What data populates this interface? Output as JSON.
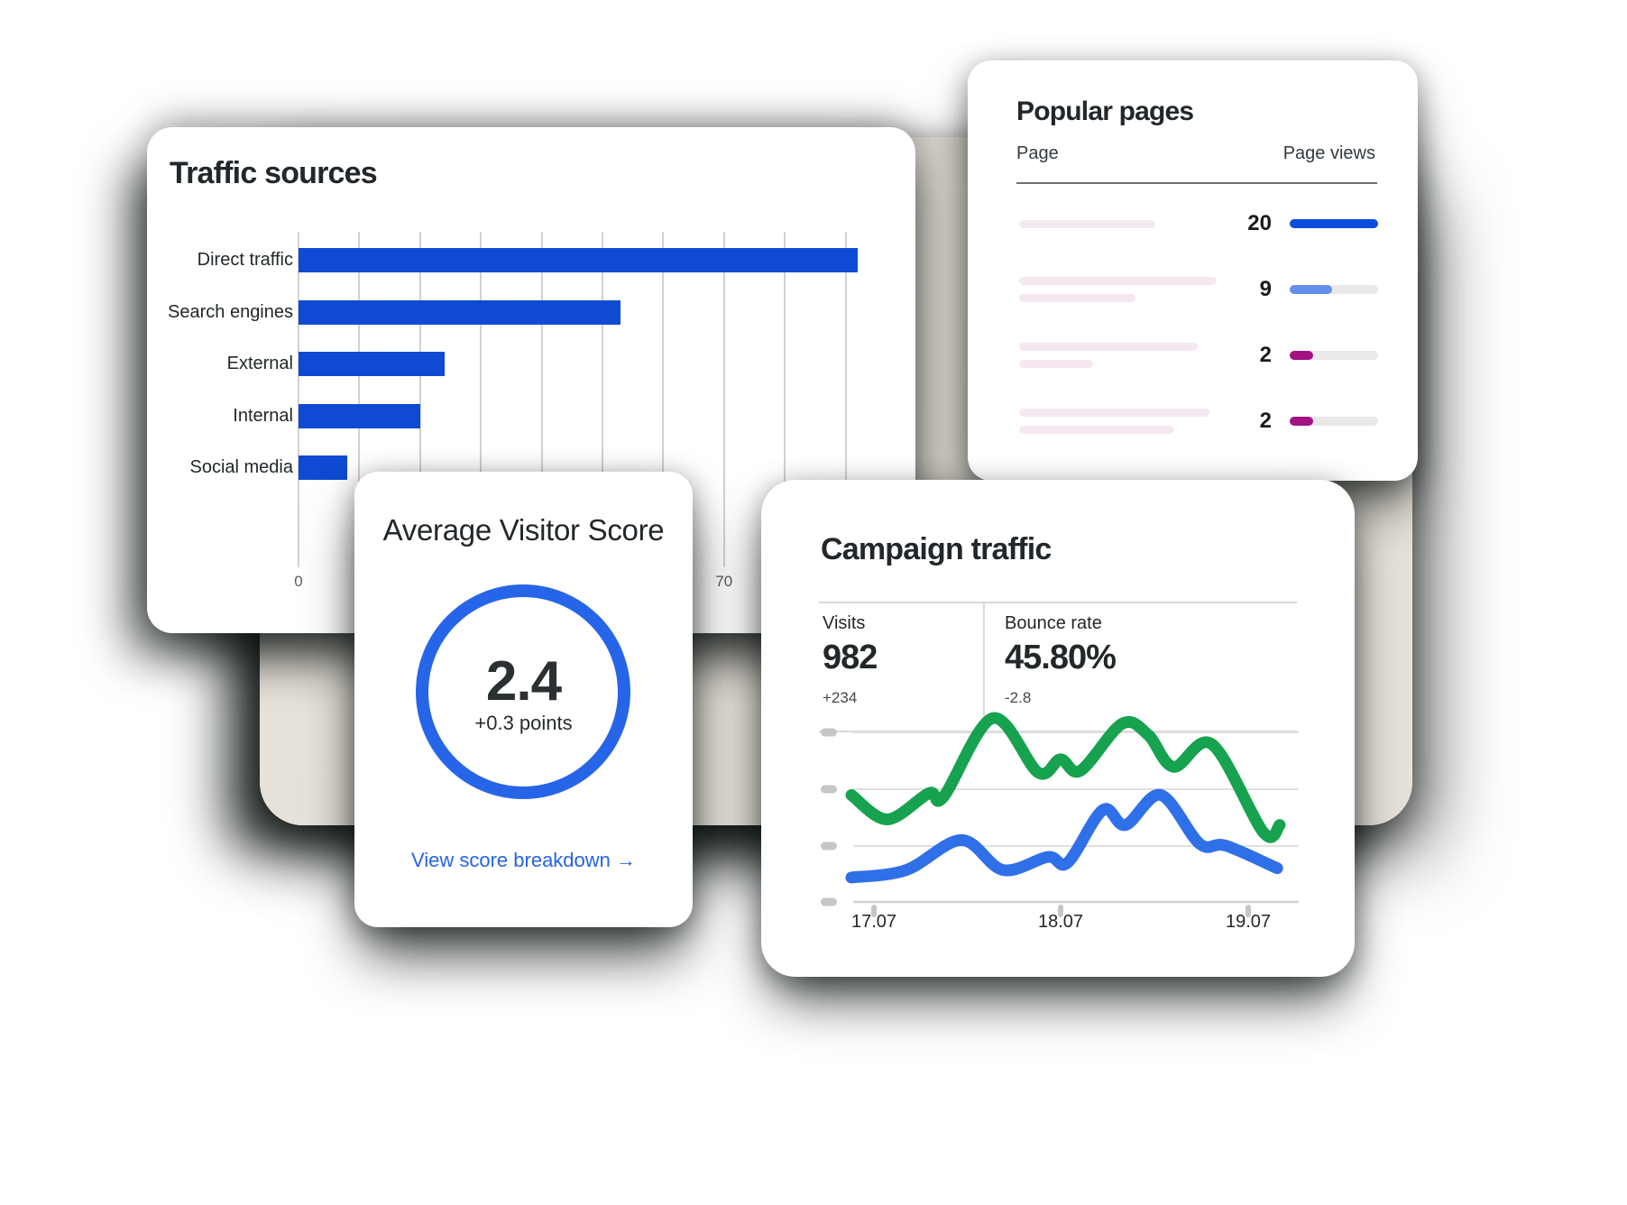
{
  "colors": {
    "bar_blue": "#0e4bd2",
    "ring_blue": "#2765e8",
    "link_blue": "#2563e8",
    "line_green": "#17a24f",
    "line_blue": "#2f6fe8",
    "mini_bar_full_blue": "#0d4cdb",
    "mini_bar_partial_blue": "#638ee9",
    "mini_bar_magenta": "#a31183",
    "mini_bar_track": "#e9e9e9",
    "placeholder_pink": "#f5e8f1",
    "panel_beige": "#e6e1d9"
  },
  "chart_data": [
    {
      "id": "traffic_sources",
      "type": "bar",
      "orientation": "horizontal",
      "title": "Traffic sources",
      "categories": [
        "Direct traffic",
        "Search engines",
        "External",
        "Internal",
        "Social media"
      ],
      "values": [
        92,
        53,
        24,
        20,
        8
      ],
      "xlim": [
        0,
        92
      ],
      "gridline_step": 10,
      "grid": "vertical",
      "x_tick_labels": [
        {
          "value": 0,
          "label": "0"
        },
        {
          "value": 70,
          "label": "70"
        }
      ],
      "bar_color": "#0e4bd2"
    },
    {
      "id": "popular_pages",
      "type": "table",
      "title": "Popular pages",
      "columns": [
        "Page",
        "Page views"
      ],
      "rows": [
        {
          "page_text": "",
          "placeholder_widths": [
            151
          ],
          "views": "20",
          "bar_fill": 1.0,
          "bar_color": "#0d4cdb"
        },
        {
          "page_text": "",
          "placeholder_widths": [
            219,
            129
          ],
          "views": "9",
          "bar_fill": 0.48,
          "bar_color": "#638ee9"
        },
        {
          "page_text": "",
          "placeholder_widths": [
            198,
            82
          ],
          "views": "2",
          "bar_fill": 0.27,
          "bar_color": "#a31183"
        },
        {
          "page_text": "",
          "placeholder_widths": [
            211,
            172
          ],
          "views": "2",
          "bar_fill": 0.27,
          "bar_color": "#a31183"
        }
      ]
    },
    {
      "id": "visitor_score",
      "type": "gauge",
      "title": "Average Visitor Score",
      "value": "2.4",
      "delta": "+0.3 points",
      "link_label": "View score breakdown →"
    },
    {
      "id": "campaign_traffic",
      "type": "line",
      "title": "Campaign traffic",
      "stats": [
        {
          "label": "Visits",
          "value": "982",
          "delta": "+234"
        },
        {
          "label": "Bounce rate",
          "value": "45.80%",
          "delta": "-2.8"
        }
      ],
      "x_tick_labels": [
        "17.07",
        "18.07",
        "19.07"
      ],
      "ylim": [
        0,
        100
      ],
      "grid": "horizontal",
      "legend": "none",
      "series": [
        {
          "name": "campaign-series-green",
          "color": "#17a24f",
          "points": [
            [
              0,
              57
            ],
            [
              0.084,
              44
            ],
            [
              0.181,
              58
            ],
            [
              0.215,
              56
            ],
            [
              0.33,
              98
            ],
            [
              0.436,
              69
            ],
            [
              0.488,
              76
            ],
            [
              0.535,
              70
            ],
            [
              0.632,
              95
            ],
            [
              0.693,
              89
            ],
            [
              0.752,
              72
            ],
            [
              0.842,
              84
            ],
            [
              0.962,
              37
            ],
            [
              1,
              41
            ]
          ]
        },
        {
          "name": "campaign-series-blue",
          "color": "#2f6fe8",
          "points": [
            [
              0,
              13
            ],
            [
              0.128,
              17
            ],
            [
              0.257,
              33
            ],
            [
              0.354,
              17
            ],
            [
              0.459,
              24
            ],
            [
              0.505,
              21
            ],
            [
              0.587,
              49
            ],
            [
              0.64,
              41
            ],
            [
              0.722,
              57
            ],
            [
              0.813,
              31
            ],
            [
              0.874,
              30
            ],
            [
              0.994,
              18
            ]
          ]
        }
      ]
    }
  ]
}
